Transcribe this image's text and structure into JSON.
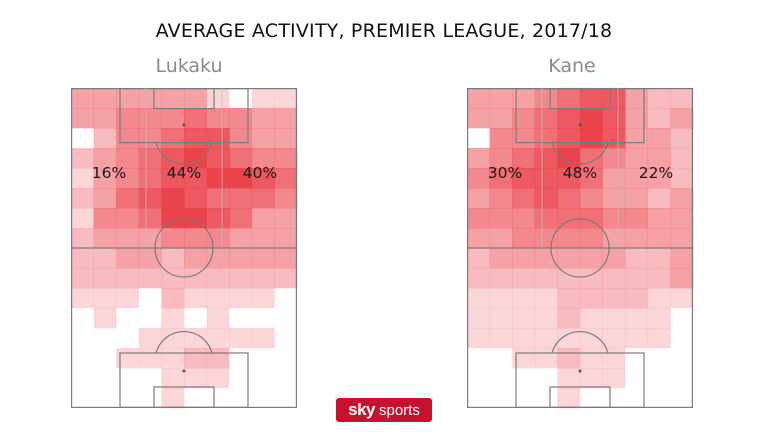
{
  "title": "AVERAGE ACTIVITY, PREMIER LEAGUE, 2017/18",
  "logo": {
    "sky": "sky",
    "sports": "sports"
  },
  "colors": {
    "heat": "#e8303a",
    "lines": "#7a7a7a"
  },
  "chart_data": [
    {
      "type": "heatmap",
      "player": "Lukaku",
      "thirds": [
        "16%",
        "44%",
        "40%"
      ],
      "grid": [
        "3333331011",
        "3344454433",
        "0244566433",
        "2345676544",
        "1345667765",
        "2356765554",
        "1445776533",
        "2333444333",
        "2233233333",
        "2222222222",
        "1110211110",
        "0100101000",
        "0001111110",
        "0011122000",
        "0000111000",
        "0000100000"
      ]
    },
    {
      "type": "heatmap",
      "player": "Kane",
      "thirds": [
        "30%",
        "48%",
        "22%"
      ],
      "grid": [
        "3334566322",
        "3345676323",
        "0445676332",
        "3456754332",
        "4566653332",
        "3456543323",
        "4445554433",
        "3344443333",
        "2333333223",
        "2222222223",
        "1111222211",
        "1111211110",
        "1111111110",
        "0011211000",
        "0000111000",
        "0000100000"
      ]
    }
  ]
}
